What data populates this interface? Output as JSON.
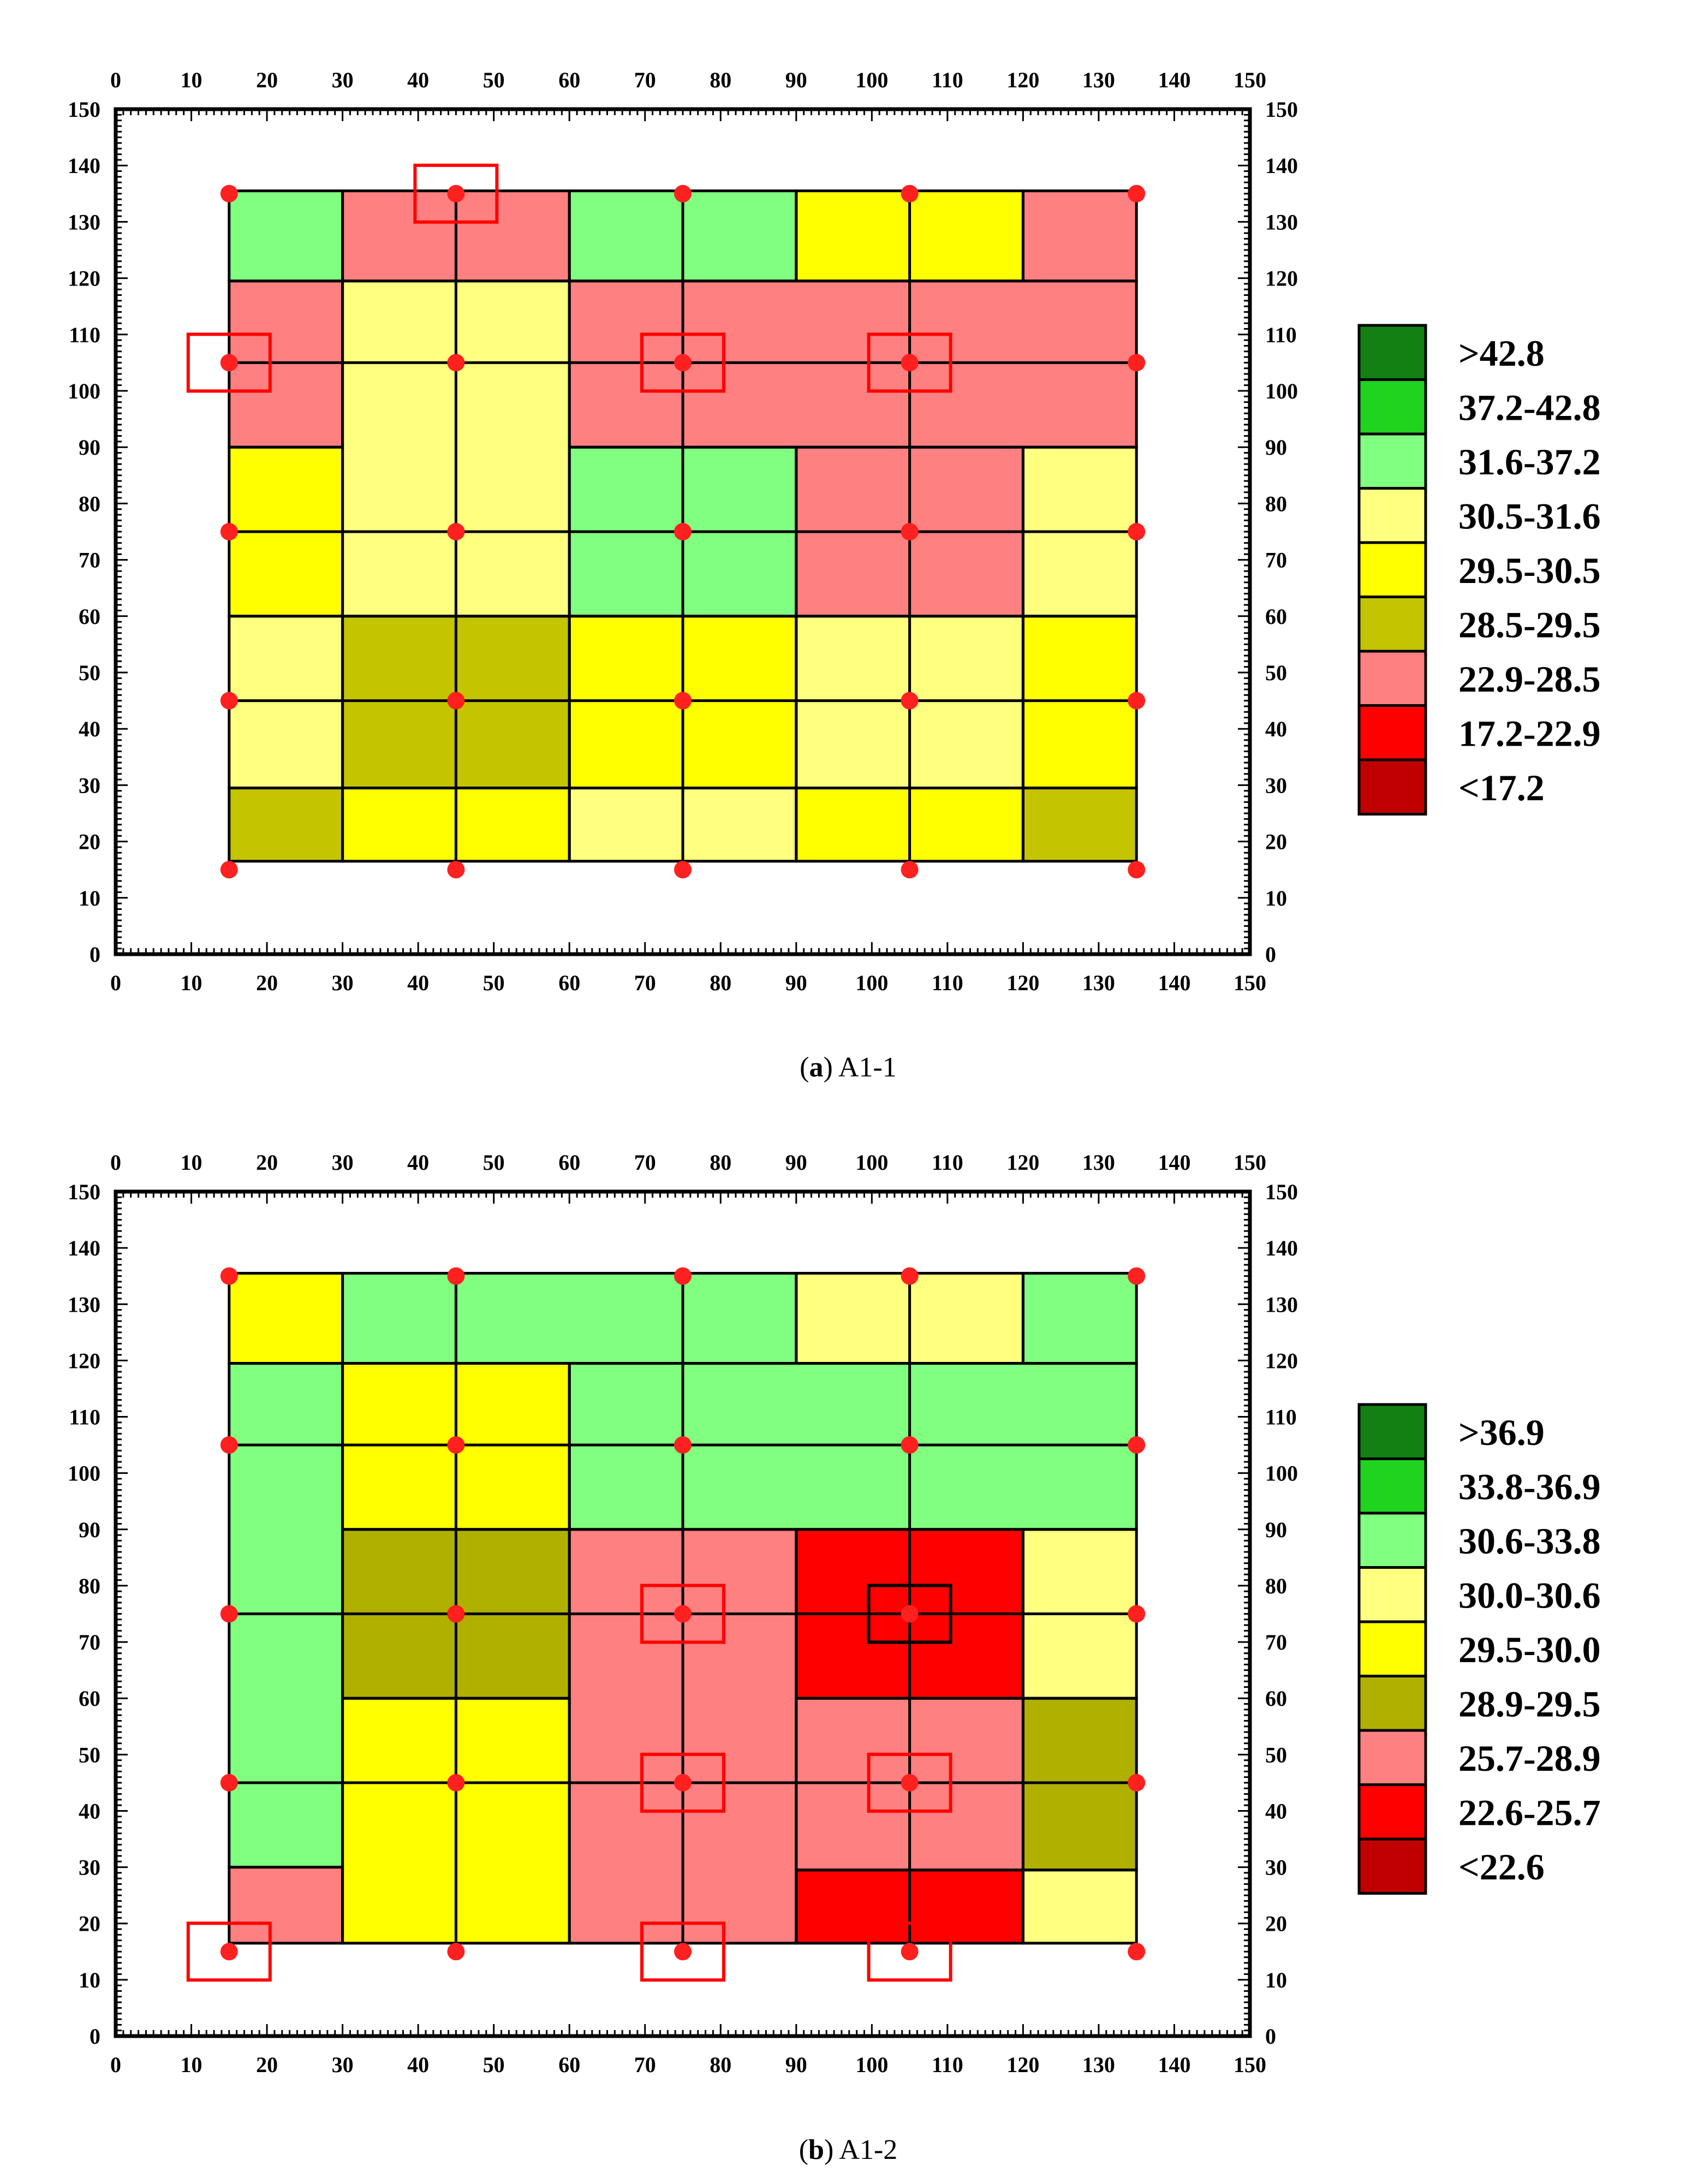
{
  "chart_data": [
    {
      "type": "heatmap",
      "id": "A1-1",
      "caption_letter": "a",
      "caption_text": "A1-1",
      "xlim": [
        0,
        150
      ],
      "ylim": [
        0,
        150
      ],
      "x_ticks": [
        0,
        10,
        20,
        30,
        40,
        50,
        60,
        70,
        80,
        90,
        100,
        110,
        120,
        130,
        140,
        150
      ],
      "y_ticks": [
        0,
        10,
        20,
        30,
        40,
        50,
        60,
        70,
        80,
        90,
        100,
        110,
        120,
        130,
        140,
        150
      ],
      "legend": {
        "labels": [
          ">42.8",
          "37.2-42.8",
          "31.6-37.2",
          "30.5-31.6",
          "29.5-30.5",
          "28.5-29.5",
          "22.9-28.5",
          "17.2-22.9",
          "<17.2"
        ],
        "colors": [
          "#138013",
          "#1fd31f",
          "#80ff80",
          "#ffff80",
          "#ffff00",
          "#c4c400",
          "#ff8080",
          "#ff0000",
          "#c00000"
        ]
      },
      "cells": [
        {
          "x0": 15,
          "x1": 30,
          "y0": 119.5,
          "y1": 135.5,
          "cls": 2
        },
        {
          "x0": 30,
          "x1": 60,
          "y0": 119.5,
          "y1": 135.5,
          "cls": 6
        },
        {
          "x0": 60,
          "x1": 90,
          "y0": 119.5,
          "y1": 135.5,
          "cls": 2
        },
        {
          "x0": 90,
          "x1": 120,
          "y0": 119.5,
          "y1": 135.5,
          "cls": 4
        },
        {
          "x0": 120,
          "x1": 135,
          "y0": 119.5,
          "y1": 135.5,
          "cls": 6
        },
        {
          "x0": 15,
          "x1": 30,
          "y0": 90,
          "y1": 119.5,
          "cls": 6
        },
        {
          "x0": 30,
          "x1": 60,
          "y0": 60,
          "y1": 119.5,
          "cls": 3
        },
        {
          "x0": 60,
          "x1": 135,
          "y0": 90,
          "y1": 119.5,
          "cls": 6
        },
        {
          "x0": 15,
          "x1": 30,
          "y0": 60,
          "y1": 90,
          "cls": 4
        },
        {
          "x0": 60,
          "x1": 90,
          "y0": 60,
          "y1": 90,
          "cls": 2
        },
        {
          "x0": 90,
          "x1": 120,
          "y0": 60,
          "y1": 90,
          "cls": 6
        },
        {
          "x0": 120,
          "x1": 135,
          "y0": 60,
          "y1": 90,
          "cls": 3
        },
        {
          "x0": 15,
          "x1": 30,
          "y0": 29.5,
          "y1": 60,
          "cls": 3
        },
        {
          "x0": 30,
          "x1": 60,
          "y0": 29.5,
          "y1": 60,
          "cls": 5
        },
        {
          "x0": 60,
          "x1": 90,
          "y0": 29.5,
          "y1": 60,
          "cls": 4
        },
        {
          "x0": 90,
          "x1": 120,
          "y0": 29.5,
          "y1": 60,
          "cls": 3
        },
        {
          "x0": 120,
          "x1": 135,
          "y0": 29.5,
          "y1": 60,
          "cls": 4
        },
        {
          "x0": 15,
          "x1": 30,
          "y0": 16.5,
          "y1": 29.5,
          "cls": 5
        },
        {
          "x0": 30,
          "x1": 60,
          "y0": 16.5,
          "y1": 29.5,
          "cls": 4
        },
        {
          "x0": 60,
          "x1": 90,
          "y0": 16.5,
          "y1": 29.5,
          "cls": 3
        },
        {
          "x0": 90,
          "x1": 120,
          "y0": 16.5,
          "y1": 29.5,
          "cls": 4
        },
        {
          "x0": 120,
          "x1": 135,
          "y0": 16.5,
          "y1": 29.5,
          "cls": 5
        }
      ],
      "grid_x": [
        45,
        75,
        105
      ],
      "grid_y": [
        45,
        75,
        105
      ],
      "grid_x_span": [
        16.5,
        135.5
      ],
      "grid_y_span": [
        15,
        135
      ],
      "points_x": [
        15,
        45,
        75,
        105,
        135
      ],
      "points_y": [
        15,
        45,
        75,
        105,
        135
      ],
      "highlight_points": [
        {
          "x": 45,
          "y": 135,
          "color": "#ff0000"
        },
        {
          "x": 15,
          "y": 105,
          "color": "#ff0000"
        },
        {
          "x": 75,
          "y": 105,
          "color": "#ff0000"
        },
        {
          "x": 105,
          "y": 105,
          "color": "#ff0000"
        }
      ]
    },
    {
      "type": "heatmap",
      "id": "A1-2",
      "caption_letter": "b",
      "caption_text": "A1-2",
      "xlim": [
        0,
        150
      ],
      "ylim": [
        0,
        150
      ],
      "x_ticks": [
        0,
        10,
        20,
        30,
        40,
        50,
        60,
        70,
        80,
        90,
        100,
        110,
        120,
        130,
        140,
        150
      ],
      "y_ticks": [
        0,
        10,
        20,
        30,
        40,
        50,
        60,
        70,
        80,
        90,
        100,
        110,
        120,
        130,
        140,
        150
      ],
      "legend": {
        "labels": [
          ">36.9",
          "33.8-36.9",
          "30.6-33.8",
          "30.0-30.6",
          "29.5-30.0",
          "28.9-29.5",
          "25.7-28.9",
          "22.6-25.7",
          "<22.6"
        ],
        "colors": [
          "#138013",
          "#1fd31f",
          "#80ff80",
          "#ffff80",
          "#ffff00",
          "#b0b000",
          "#ff8080",
          "#ff0000",
          "#c00000"
        ]
      },
      "cells": [
        {
          "x0": 15,
          "x1": 30,
          "y0": 119.5,
          "y1": 135.5,
          "cls": 4
        },
        {
          "x0": 30,
          "x1": 90,
          "y0": 119.5,
          "y1": 135.5,
          "cls": 2
        },
        {
          "x0": 90,
          "x1": 120,
          "y0": 119.5,
          "y1": 135.5,
          "cls": 3
        },
        {
          "x0": 120,
          "x1": 135,
          "y0": 119.5,
          "y1": 135.5,
          "cls": 2
        },
        {
          "x0": 15,
          "x1": 30,
          "y0": 30,
          "y1": 119.5,
          "cls": 2
        },
        {
          "x0": 30,
          "x1": 60,
          "y0": 90,
          "y1": 119.5,
          "cls": 4
        },
        {
          "x0": 60,
          "x1": 135,
          "y0": 90,
          "y1": 119.5,
          "cls": 2
        },
        {
          "x0": 30,
          "x1": 60,
          "y0": 60,
          "y1": 90,
          "cls": 5
        },
        {
          "x0": 60,
          "x1": 90,
          "y0": 16.5,
          "y1": 90,
          "cls": 6
        },
        {
          "x0": 90,
          "x1": 120,
          "y0": 60,
          "y1": 90,
          "cls": 7
        },
        {
          "x0": 120,
          "x1": 135,
          "y0": 60,
          "y1": 90,
          "cls": 3
        },
        {
          "x0": 30,
          "x1": 60,
          "y0": 16.5,
          "y1": 60,
          "cls": 4
        },
        {
          "x0": 90,
          "x1": 120,
          "y0": 29.5,
          "y1": 60,
          "cls": 6
        },
        {
          "x0": 120,
          "x1": 135,
          "y0": 29.5,
          "y1": 60,
          "cls": 5
        },
        {
          "x0": 15,
          "x1": 30,
          "y0": 16.5,
          "y1": 30,
          "cls": 6
        },
        {
          "x0": 90,
          "x1": 120,
          "y0": 16.5,
          "y1": 29.5,
          "cls": 7
        },
        {
          "x0": 120,
          "x1": 135,
          "y0": 16.5,
          "y1": 29.5,
          "cls": 3
        }
      ],
      "grid_x": [
        45,
        75,
        105
      ],
      "grid_y": [
        45,
        75,
        105
      ],
      "grid_x_span": [
        16.5,
        135.5
      ],
      "grid_y_span": [
        15,
        135
      ],
      "points_x": [
        15,
        45,
        75,
        105,
        135
      ],
      "points_y": [
        15,
        45,
        75,
        105,
        135
      ],
      "highlight_points": [
        {
          "x": 75,
          "y": 75,
          "color": "#ff0000"
        },
        {
          "x": 105,
          "y": 75,
          "color": "#000000"
        },
        {
          "x": 75,
          "y": 45,
          "color": "#ff0000"
        },
        {
          "x": 105,
          "y": 45,
          "color": "#ff0000"
        },
        {
          "x": 15,
          "y": 15,
          "color": "#ff0000"
        },
        {
          "x": 75,
          "y": 15,
          "color": "#ff0000"
        },
        {
          "x": 105,
          "y": 15,
          "color": "#ff0000"
        }
      ]
    }
  ]
}
